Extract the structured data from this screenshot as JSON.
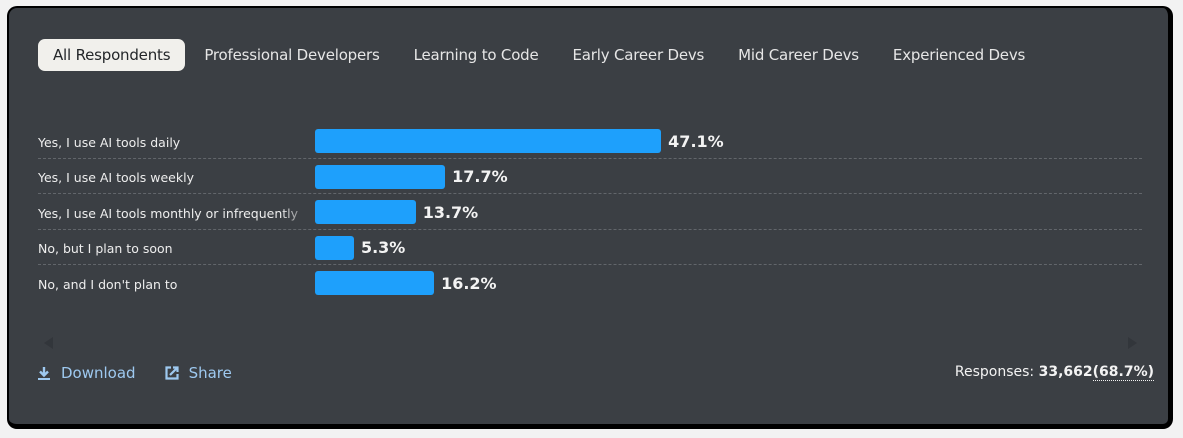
{
  "tabs": [
    {
      "label": "All Respondents",
      "active": true
    },
    {
      "label": "Professional Developers",
      "active": false
    },
    {
      "label": "Learning to Code",
      "active": false
    },
    {
      "label": "Early Career Devs",
      "active": false
    },
    {
      "label": "Mid Career Devs",
      "active": false
    },
    {
      "label": "Experienced Devs",
      "active": false
    }
  ],
  "colors": {
    "bar": "#1ea0fc",
    "background": "#3b3f44",
    "active_tab_bg": "#f1f0ec",
    "link": "#9ec9f0"
  },
  "chart_data": {
    "type": "bar",
    "orientation": "horizontal",
    "categories": [
      "Yes, I use AI tools daily",
      "Yes, I use AI tools weekly",
      "Yes, I use AI tools monthly or infrequently",
      "No, but I plan to soon",
      "No, and I don't plan to"
    ],
    "values": [
      47.1,
      17.7,
      13.7,
      5.3,
      16.2
    ],
    "value_labels": [
      "47.1%",
      "17.7%",
      "13.7%",
      "5.3%",
      "16.2%"
    ],
    "unit": "%",
    "title": "",
    "xlabel": "",
    "ylabel": "",
    "grid": "dashed row separators",
    "legend": "none"
  },
  "actions": {
    "download_label": "Download",
    "share_label": "Share"
  },
  "responses": {
    "label": "Responses:",
    "count": "33,662",
    "percent": "(68.7%)"
  }
}
